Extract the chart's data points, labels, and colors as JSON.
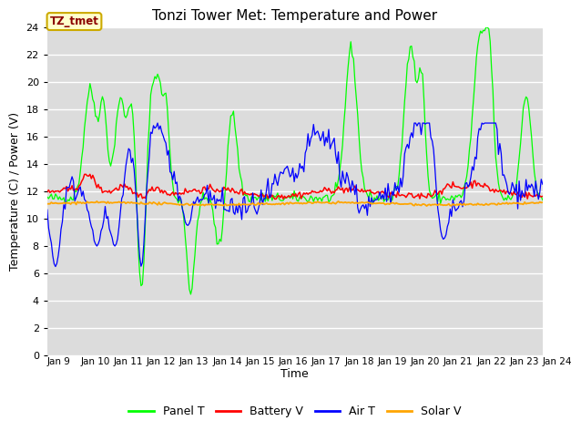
{
  "title": "Tonzi Tower Met: Temperature and Power",
  "xlabel": "Time",
  "ylabel": "Temperature (C) / Power (V)",
  "ylim": [
    0,
    24
  ],
  "yticks": [
    0,
    2,
    4,
    6,
    8,
    10,
    12,
    14,
    16,
    18,
    20,
    22,
    24
  ],
  "xtick_labels": [
    "Jan 9 ",
    "Jan 10",
    "Jan 11",
    "Jan 12",
    "Jan 13",
    "Jan 14",
    "Jan 15",
    "Jan 16",
    "Jan 17",
    "Jan 18",
    "Jan 19",
    "Jan 20",
    "Jan 21",
    "Jan 22",
    "Jan 23",
    "Jan 24"
  ],
  "bg_color": "#dcdcdc",
  "fig_bg_color": "#ffffff",
  "grid_color": "#ffffff",
  "colors": {
    "panel_t": "#00ff00",
    "battery_v": "#ff0000",
    "air_t": "#0000ff",
    "solar_v": "#ffa500"
  },
  "legend_labels": [
    "Panel T",
    "Battery V",
    "Air T",
    "Solar V"
  ],
  "annotation_text": "TZ_tmet",
  "annotation_bg": "#ffffcc",
  "annotation_border": "#ccaa00"
}
